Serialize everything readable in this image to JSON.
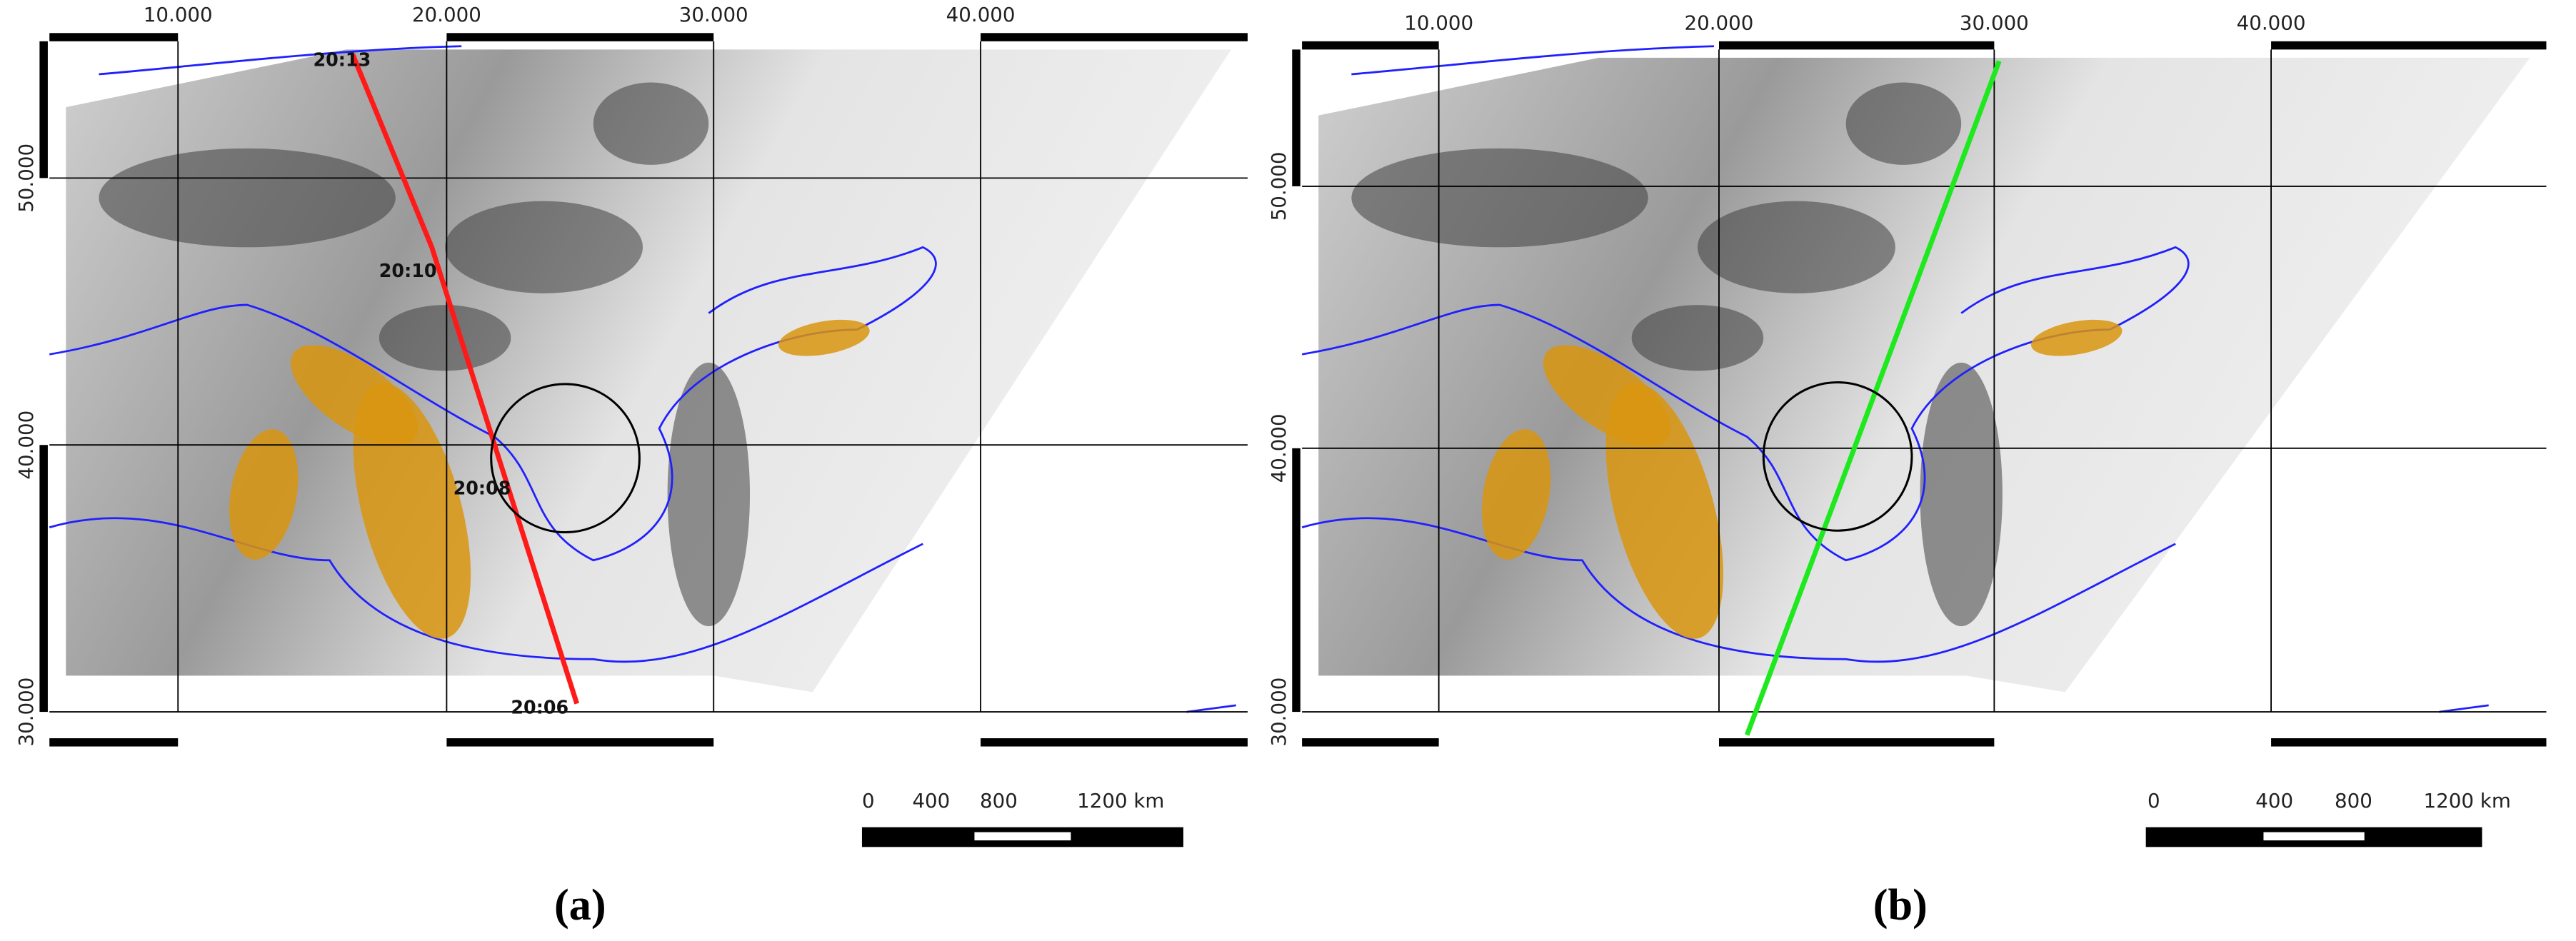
{
  "panels": [
    {
      "label": "(a)",
      "x_ticks": [
        "10.000",
        "20.000",
        "30.000",
        "40.000"
      ],
      "y_ticks": [
        "50.000",
        "40.000",
        "30.000"
      ],
      "track_times": [
        "20:13",
        "20:10",
        "20:08",
        "20:06"
      ],
      "scale_bar": [
        "0",
        "400",
        "800",
        "1200 km"
      ]
    },
    {
      "label": "(b)",
      "x_ticks": [
        "10.000",
        "20.000",
        "30.000",
        "40.000"
      ],
      "y_ticks": [
        "50.000",
        "40.000",
        "30.000"
      ],
      "scale_bar": [
        "0",
        "400",
        "800",
        "1200 km"
      ]
    }
  ]
}
